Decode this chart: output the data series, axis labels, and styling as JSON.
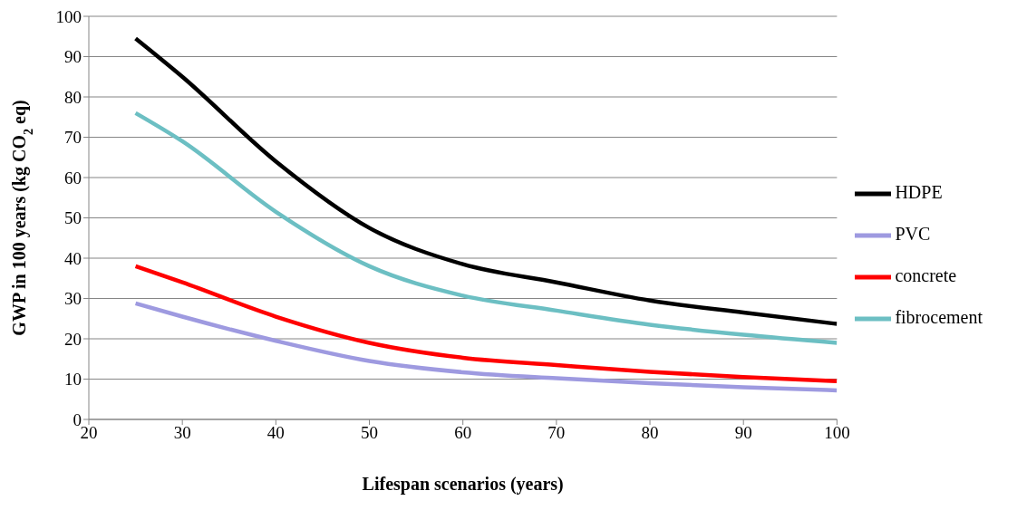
{
  "chart_data": {
    "type": "line",
    "xlabel": "Lifespan scenarios (years)",
    "ylabel": "GWP in 100 years (kg CO$_{2}$ eq)",
    "x": [
      25,
      30,
      40,
      50,
      60,
      70,
      80,
      90,
      100
    ],
    "series": [
      {
        "name": "HDPE",
        "color": "#000000",
        "values": [
          94.5,
          85,
          64,
          47.5,
          38.5,
          34,
          29.5,
          26.5,
          23.7
        ]
      },
      {
        "name": "PVC",
        "color": "#9e9ae0",
        "values": [
          28.8,
          25.5,
          19.5,
          14.5,
          11.7,
          10.2,
          9,
          8,
          7.2
        ]
      },
      {
        "name": "concrete",
        "color": "#ff0000",
        "values": [
          38,
          34,
          25.5,
          19,
          15.3,
          13.5,
          11.8,
          10.5,
          9.5
        ]
      },
      {
        "name": "fibrocement",
        "color": "#6cbfc3",
        "values": [
          76,
          69,
          51.5,
          38,
          30.7,
          27,
          23.5,
          21,
          19
        ]
      }
    ],
    "xlim": [
      20,
      100
    ],
    "xticks": [
      20,
      30,
      40,
      50,
      60,
      70,
      80,
      90,
      100
    ],
    "ylim": [
      0,
      100
    ],
    "yticks": [
      0,
      10,
      20,
      30,
      40,
      50,
      60,
      70,
      80,
      90,
      100
    ],
    "grid": "y",
    "legend": "right",
    "marker": "none",
    "line_style": "solid"
  }
}
